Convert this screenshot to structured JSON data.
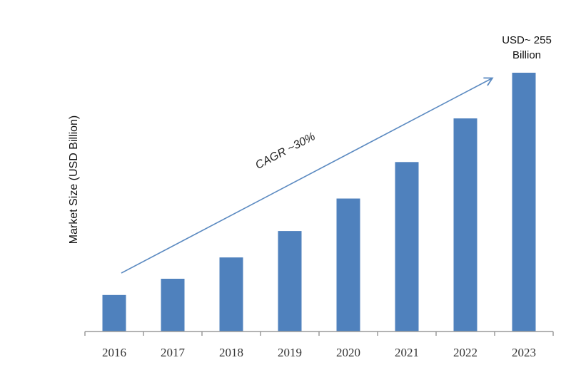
{
  "chart_data": {
    "type": "bar",
    "categories": [
      "2016",
      "2017",
      "2018",
      "2019",
      "2020",
      "2021",
      "2022",
      "2023"
    ],
    "values": [
      36,
      52,
      73,
      99,
      131,
      167,
      210,
      255
    ],
    "title": "",
    "xlabel": "",
    "ylabel": "Market Size (USD Billion)",
    "ylim": [
      0,
      255
    ],
    "grid": false,
    "legend": "none",
    "bar_color": "#4f81bd",
    "arrow_color": "#5b8ac1",
    "annotations": {
      "callout_line1": "USD~ 255",
      "callout_line2": "Billion",
      "cagr": "CAGR ~30%"
    }
  }
}
